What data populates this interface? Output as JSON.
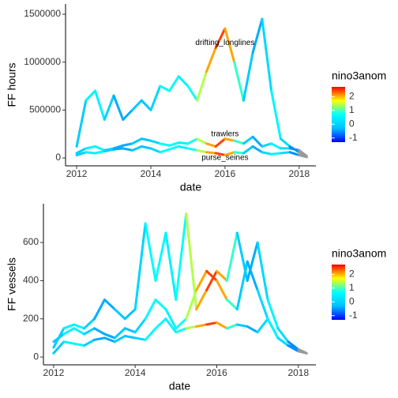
{
  "color_scale": {
    "title": "nino3anom",
    "lim": [
      -1.3,
      2.7
    ],
    "ticks": [
      -1,
      0,
      1,
      2
    ],
    "colors": [
      "#0000ff",
      "#00bfff",
      "#00ffff",
      "#ffff00",
      "#ff0000"
    ],
    "na_color": "#999999"
  },
  "color_values": [
    -0.5,
    0.3,
    0.8,
    0.3,
    -0.3,
    -0.5,
    -0.3,
    0,
    -0.4,
    0.5,
    0.8,
    0.5,
    0.5,
    1.0,
    1.8,
    2.3,
    2.6,
    1.5,
    0.3,
    -0.5,
    -0.3,
    0.5,
    0.6,
    -0.3,
    -0.8,
    null
  ],
  "chart_data": [
    {
      "type": "line",
      "xlabel": "date",
      "ylabel": "FF hours",
      "x": [
        2012.0,
        2012.25,
        2012.5,
        2012.75,
        2013.0,
        2013.25,
        2013.5,
        2013.75,
        2014.0,
        2014.25,
        2014.5,
        2014.75,
        2015.0,
        2015.25,
        2015.5,
        2015.75,
        2016.0,
        2016.25,
        2016.5,
        2016.75,
        2017.0,
        2017.25,
        2017.5,
        2017.75,
        2018.0,
        2018.2
      ],
      "xlim": [
        2011.7,
        2018.45
      ],
      "xticks": [
        2012,
        2014,
        2016,
        2018
      ],
      "ylim": [
        -82000,
        1607000
      ],
      "yticks": [
        0,
        500000,
        1000000,
        1500000
      ],
      "series": [
        {
          "name": "drifting_longlines",
          "values": [
            120000,
            600000,
            700000,
            400000,
            650000,
            400000,
            500000,
            600000,
            500000,
            750000,
            700000,
            850000,
            750000,
            600000,
            900000,
            1150000,
            1350000,
            1000000,
            600000,
            1100000,
            1450000,
            700000,
            200000,
            120000,
            60000,
            10000
          ]
        },
        {
          "name": "trawlers",
          "values": [
            50000,
            100000,
            120000,
            80000,
            100000,
            130000,
            150000,
            200000,
            180000,
            150000,
            130000,
            160000,
            150000,
            200000,
            150000,
            120000,
            200000,
            180000,
            150000,
            220000,
            120000,
            150000,
            100000,
            100000,
            80000,
            20000
          ]
        },
        {
          "name": "purse_seines",
          "values": [
            30000,
            60000,
            50000,
            70000,
            90000,
            100000,
            80000,
            120000,
            100000,
            60000,
            90000,
            120000,
            100000,
            80000,
            60000,
            50000,
            30000,
            60000,
            50000,
            120000,
            60000,
            40000,
            50000,
            60000,
            30000,
            10000
          ]
        }
      ],
      "annotations": [
        {
          "text": "drifting_longlines",
          "x": 2016,
          "y": 1200000
        },
        {
          "text": "trawlers",
          "x": 2016,
          "y": 250000
        },
        {
          "text": "purse_seines",
          "x": 2016,
          "y": 0
        }
      ]
    },
    {
      "type": "line",
      "xlabel": "date",
      "ylabel": "FF vessels",
      "x": [
        2012.0,
        2012.25,
        2012.5,
        2012.75,
        2013.0,
        2013.25,
        2013.5,
        2013.75,
        2014.0,
        2014.25,
        2014.5,
        2014.75,
        2015.0,
        2015.25,
        2015.5,
        2015.75,
        2016.0,
        2016.25,
        2016.5,
        2016.75,
        2017.0,
        2017.25,
        2017.5,
        2017.75,
        2018.0,
        2018.2
      ],
      "xlim": [
        2011.75,
        2018.43
      ],
      "xticks": [
        2012,
        2014,
        2016,
        2018
      ],
      "ylim": [
        -41,
        803
      ],
      "yticks": [
        0,
        200,
        400,
        600
      ],
      "series": [
        {
          "values": [
            50,
            150,
            170,
            150,
            200,
            300,
            250,
            200,
            250,
            700,
            400,
            650,
            300,
            750,
            250,
            350,
            450,
            400,
            650,
            400,
            600,
            300,
            150,
            80,
            40,
            20
          ]
        },
        {
          "values": [
            80,
            120,
            150,
            120,
            150,
            120,
            100,
            150,
            130,
            200,
            300,
            250,
            150,
            200,
            350,
            450,
            400,
            300,
            250,
            500,
            350,
            200,
            100,
            60,
            40,
            20
          ]
        },
        {
          "values": [
            20,
            80,
            70,
            60,
            90,
            100,
            80,
            110,
            100,
            90,
            150,
            200,
            130,
            150,
            160,
            170,
            180,
            150,
            170,
            160,
            130,
            200,
            100,
            60,
            30,
            20
          ]
        }
      ]
    }
  ]
}
